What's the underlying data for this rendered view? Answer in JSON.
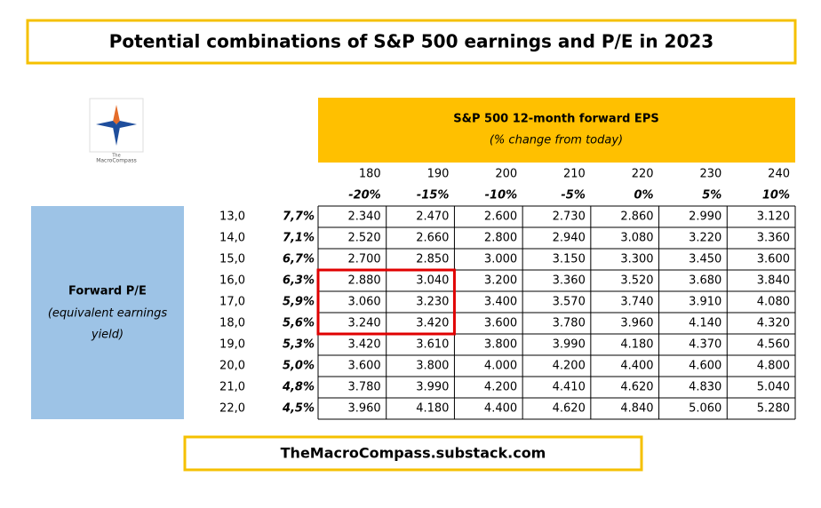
{
  "title": "Potential combinations of S&P 500 earnings and P/E in 2023",
  "logo": {
    "line1": "The",
    "line2": "MacroCompass"
  },
  "header": {
    "title": "S&P 500 12-month forward EPS",
    "subtitle": "(% change from today)"
  },
  "columns": [
    {
      "eps": "180",
      "change": "-20%"
    },
    {
      "eps": "190",
      "change": "-15%"
    },
    {
      "eps": "200",
      "change": "-10%"
    },
    {
      "eps": "210",
      "change": "-5%"
    },
    {
      "eps": "220",
      "change": "0%"
    },
    {
      "eps": "230",
      "change": "5%"
    },
    {
      "eps": "240",
      "change": "10%"
    }
  ],
  "row_header": {
    "title": "Forward P/E",
    "subtitle_line1": "(equivalent earnings",
    "subtitle_line2": "yield)"
  },
  "rows": [
    {
      "pe": "13,0",
      "yield": "7,7%",
      "cells": [
        "2.340",
        "2.470",
        "2.600",
        "2.730",
        "2.860",
        "2.990",
        "3.120"
      ]
    },
    {
      "pe": "14,0",
      "yield": "7,1%",
      "cells": [
        "2.520",
        "2.660",
        "2.800",
        "2.940",
        "3.080",
        "3.220",
        "3.360"
      ]
    },
    {
      "pe": "15,0",
      "yield": "6,7%",
      "cells": [
        "2.700",
        "2.850",
        "3.000",
        "3.150",
        "3.300",
        "3.450",
        "3.600"
      ]
    },
    {
      "pe": "16,0",
      "yield": "6,3%",
      "cells": [
        "2.880",
        "3.040",
        "3.200",
        "3.360",
        "3.520",
        "3.680",
        "3.840"
      ]
    },
    {
      "pe": "17,0",
      "yield": "5,9%",
      "cells": [
        "3.060",
        "3.230",
        "3.400",
        "3.570",
        "3.740",
        "3.910",
        "4.080"
      ]
    },
    {
      "pe": "18,0",
      "yield": "5,6%",
      "cells": [
        "3.240",
        "3.420",
        "3.600",
        "3.780",
        "3.960",
        "4.140",
        "4.320"
      ]
    },
    {
      "pe": "19,0",
      "yield": "5,3%",
      "cells": [
        "3.420",
        "3.610",
        "3.800",
        "3.990",
        "4.180",
        "4.370",
        "4.560"
      ]
    },
    {
      "pe": "20,0",
      "yield": "5,0%",
      "cells": [
        "3.600",
        "3.800",
        "4.000",
        "4.200",
        "4.400",
        "4.600",
        "4.800"
      ]
    },
    {
      "pe": "21,0",
      "yield": "4,8%",
      "cells": [
        "3.780",
        "3.990",
        "4.200",
        "4.410",
        "4.620",
        "4.830",
        "5.040"
      ]
    },
    {
      "pe": "22,0",
      "yield": "4,5%",
      "cells": [
        "3.960",
        "4.180",
        "4.400",
        "4.620",
        "4.840",
        "5.060",
        "5.280"
      ]
    }
  ],
  "footer": "TheMacroCompass.substack.com"
}
